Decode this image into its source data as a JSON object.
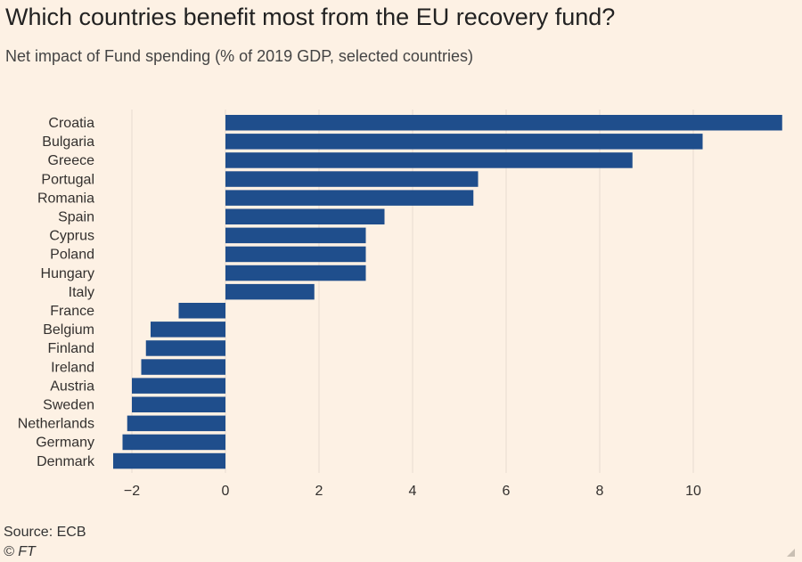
{
  "chart_data": {
    "type": "bar",
    "orientation": "horizontal",
    "title": "Which countries benefit most from the EU recovery fund?",
    "subtitle": "Net impact of Fund spending (% of 2019 GDP, selected countries)",
    "categories": [
      "Croatia",
      "Bulgaria",
      "Greece",
      "Portugal",
      "Romania",
      "Spain",
      "Cyprus",
      "Poland",
      "Hungary",
      "Italy",
      "France",
      "Belgium",
      "Finland",
      "Ireland",
      "Austria",
      "Sweden",
      "Netherlands",
      "Germany",
      "Denmark"
    ],
    "values": [
      11.9,
      10.2,
      8.7,
      5.4,
      5.3,
      3.4,
      3.0,
      3.0,
      3.0,
      1.9,
      -1.0,
      -1.6,
      -1.7,
      -1.8,
      -2.0,
      -2.0,
      -2.1,
      -2.2,
      -2.4
    ],
    "xticks": [
      -2,
      0,
      2,
      4,
      6,
      8,
      10
    ],
    "xlim": [
      -2.4,
      11.9
    ],
    "grid": true,
    "bar_color": "#1f4e8c"
  },
  "footer": {
    "source": "Source: ECB",
    "credit": "© FT"
  }
}
